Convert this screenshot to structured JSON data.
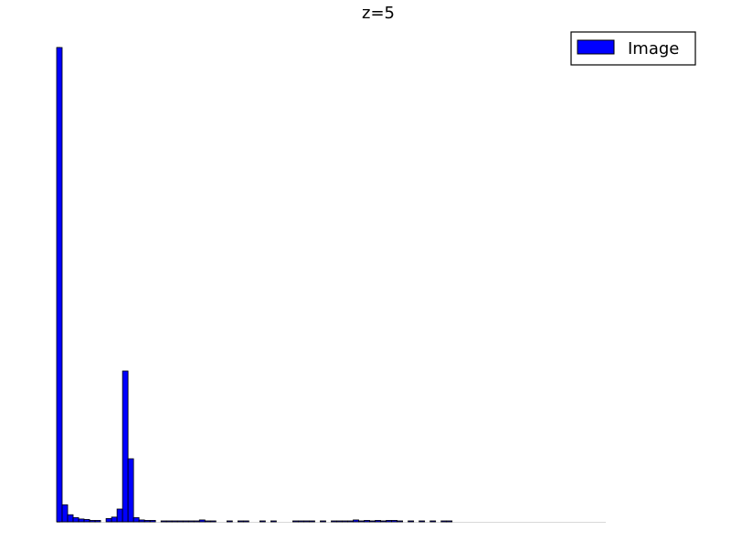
{
  "chart_data": {
    "type": "bar",
    "title": "z=5",
    "xlabel": "",
    "ylabel": "",
    "ylim": [
      0,
      1000
    ],
    "grid": false,
    "legend": {
      "placement": "top-right",
      "entries": [
        "Image"
      ]
    },
    "x": [
      0,
      1,
      2,
      3,
      4,
      5,
      6,
      7,
      8,
      9,
      10,
      11,
      12,
      13,
      14,
      15,
      16,
      17,
      18,
      19,
      20,
      21,
      22,
      23,
      24,
      25,
      26,
      27,
      28,
      29,
      30,
      31,
      32,
      33,
      34,
      35,
      36,
      37,
      38,
      39,
      40,
      41,
      42,
      43,
      44,
      45,
      46,
      47,
      48,
      49,
      50,
      51,
      52,
      53,
      54,
      55,
      56,
      57,
      58,
      59,
      60,
      61,
      62,
      63,
      64,
      65,
      66,
      67,
      68,
      69,
      70,
      71,
      72,
      73,
      74,
      75,
      76,
      77,
      78,
      79,
      80,
      81,
      82,
      83,
      84,
      85,
      86,
      87,
      88,
      89,
      90,
      91,
      92,
      93,
      94,
      95,
      96,
      97,
      98,
      99
    ],
    "series": [
      {
        "name": "Image",
        "color": "#0000ff",
        "values": [
          1000,
          36,
          15,
          9,
          6,
          5,
          3,
          3,
          0,
          7,
          10,
          27,
          318,
          133,
          9,
          4,
          3,
          3,
          0,
          2,
          2,
          2,
          2,
          2,
          2,
          2,
          4,
          2,
          2,
          0,
          0,
          2,
          0,
          2,
          2,
          0,
          0,
          2,
          0,
          2,
          0,
          0,
          0,
          2,
          2,
          2,
          2,
          0,
          2,
          0,
          2,
          2,
          2,
          2,
          4,
          2,
          3,
          2,
          3,
          2,
          3,
          3,
          2,
          0,
          2,
          0,
          2,
          0,
          2,
          0,
          2,
          2,
          0,
          0,
          0,
          0,
          0,
          0,
          0,
          0,
          0,
          0,
          0,
          0,
          0,
          0,
          0,
          0,
          0,
          0,
          0,
          0,
          0,
          0,
          0,
          0,
          0,
          0,
          0,
          0
        ]
      }
    ]
  }
}
